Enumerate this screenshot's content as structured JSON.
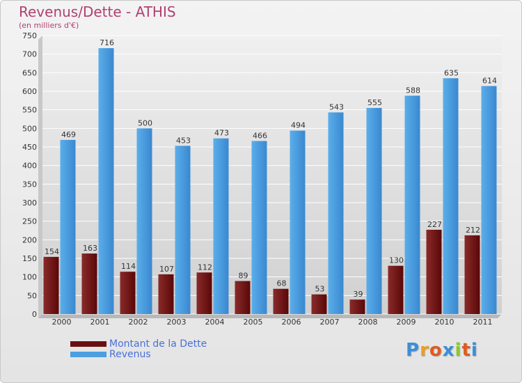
{
  "title": "Revenus/Dette - ATHIS",
  "subtitle": "(en milliers d'€)",
  "colors": {
    "dette": "#7a1a1a",
    "revenus": "#4a9fe0",
    "title": "#b04070",
    "legend_text": "#4a6fd8"
  },
  "legend": [
    {
      "label": "Montant de la Dette",
      "color": "#6a0f0f"
    },
    {
      "label": "Revenus",
      "color": "#4a9fe0"
    }
  ],
  "logo": {
    "letters": [
      "P",
      "r",
      "o",
      "x",
      "i",
      "t",
      "i"
    ],
    "colors": [
      "#3a8fd8",
      "#e8a020",
      "#e05a20",
      "#3a8fd8",
      "#8ac830",
      "#e05a20",
      "#3a8fd8"
    ]
  },
  "chart_data": {
    "type": "bar",
    "title": "Revenus/Dette - ATHIS",
    "subtitle": "(en milliers d'€)",
    "xlabel": "",
    "ylabel": "",
    "ylim": [
      0,
      750
    ],
    "yticks": [
      0,
      50,
      100,
      150,
      200,
      250,
      300,
      350,
      400,
      450,
      500,
      550,
      600,
      650,
      700,
      750
    ],
    "grid": true,
    "legend_position": "bottom-left",
    "categories": [
      "2000",
      "2001",
      "2002",
      "2003",
      "2004",
      "2005",
      "2006",
      "2007",
      "2008",
      "2009",
      "2010",
      "2011"
    ],
    "series": [
      {
        "name": "Montant de la Dette",
        "values": [
          154,
          163,
          114,
          107,
          112,
          89,
          68,
          53,
          39,
          130,
          227,
          212
        ]
      },
      {
        "name": "Revenus",
        "values": [
          469,
          716,
          500,
          453,
          473,
          466,
          494,
          543,
          555,
          588,
          635,
          614
        ]
      }
    ]
  }
}
